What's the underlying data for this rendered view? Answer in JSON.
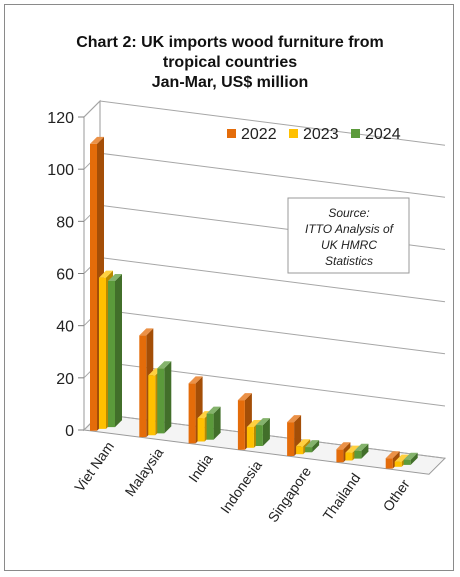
{
  "chart_data": {
    "type": "bar",
    "title_lines": [
      "Chart 2: UK imports wood furniture from",
      "tropical countries",
      "Jan-Mar, US$ million"
    ],
    "categories": [
      "Viet Nam",
      "Malaysia",
      "India",
      "Indonesia",
      "Singapore",
      "Thailand",
      "Other"
    ],
    "series": [
      {
        "name": "2022",
        "values": [
          110,
          39,
          23,
          19,
          13,
          5,
          4
        ],
        "color": "#e46c0a"
      },
      {
        "name": "2023",
        "values": [
          58,
          23,
          9,
          8,
          3,
          3,
          2
        ],
        "color": "#ffc000"
      },
      {
        "name": "2024",
        "values": [
          56,
          25,
          10,
          8,
          2,
          3,
          2
        ],
        "color": "#5b9a3b"
      }
    ],
    "ylim": [
      0,
      120
    ],
    "yticks": [
      0,
      20,
      40,
      60,
      80,
      100,
      120
    ],
    "grid": true,
    "legend_position": "top-right",
    "annotation_lines": [
      "Source:",
      "ITTO Analysis of",
      "UK HMRC",
      "Statistics"
    ]
  }
}
